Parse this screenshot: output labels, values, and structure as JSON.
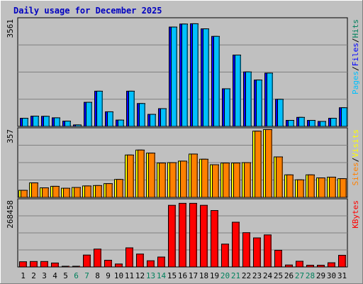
{
  "chart_data": {
    "type": "bar",
    "title": "Daily usage for December 2025",
    "categories": [
      "1",
      "2",
      "3",
      "4",
      "5",
      "6",
      "7",
      "8",
      "9",
      "10",
      "11",
      "12",
      "13",
      "14",
      "15",
      "16",
      "17",
      "18",
      "19",
      "20",
      "21",
      "22",
      "23",
      "24",
      "25",
      "26",
      "27",
      "28",
      "29",
      "30",
      "31"
    ],
    "weekend_days": [
      "6",
      "7",
      "13",
      "14",
      "20",
      "21",
      "27",
      "28"
    ],
    "panels": [
      {
        "id": "pages-files-hits",
        "ymax": 3561,
        "ymax_label": "3561",
        "legend": [
          "Pages",
          "/",
          "Files",
          "/",
          "Hits"
        ],
        "series": [
          {
            "name": "Hits",
            "color": "#00805c",
            "values": [
              0,
              0,
              0,
              0,
              0,
              0,
              0,
              0,
              0,
              0,
              0,
              0,
              0,
              0,
              0,
              0,
              0,
              0,
              0,
              0,
              0,
              0,
              0,
              0,
              0,
              0,
              0,
              0,
              0,
              0,
              0
            ]
          },
          {
            "name": "Files",
            "color": "#0000ff",
            "values": [
              270,
              340,
              335,
              285,
              175,
              50,
              800,
              1170,
              485,
              210,
              1170,
              760,
              400,
              590,
              3300,
              3400,
              3410,
              3240,
              2990,
              1250,
              2370,
              1810,
              1540,
              1770,
              900,
              200,
              300,
              200,
              165,
              270,
              620
            ]
          },
          {
            "name": "Pages",
            "color": "#00c0ff",
            "values": [
              270,
              340,
              335,
              285,
              175,
              50,
              800,
              1170,
              485,
              210,
              1170,
              760,
              400,
              590,
              3300,
              3400,
              3410,
              3240,
              2990,
              1250,
              2370,
              1810,
              1540,
              1770,
              900,
              200,
              300,
              200,
              165,
              270,
              620
            ]
          }
        ]
      },
      {
        "id": "visits-sites",
        "ymax": 357,
        "ymax_label": "357",
        "legend": [
          "Sites",
          "/",
          "Visits"
        ],
        "series": [
          {
            "name": "Visits",
            "color": "#ffff00",
            "values": [
              37,
              76,
              50,
              58,
              48,
              52,
              60,
              62,
              72,
              94,
              222,
              248,
              232,
              180,
              182,
              190,
              227,
              200,
              171,
              180,
              180,
              182,
              347,
              355,
              212,
              118,
              92,
              118,
              102,
              106,
              98
            ]
          },
          {
            "name": "Sites",
            "color": "#ff8000",
            "values": [
              37,
              76,
              50,
              58,
              48,
              52,
              60,
              62,
              72,
              94,
              222,
              248,
              232,
              180,
              182,
              190,
              227,
              200,
              171,
              180,
              180,
              182,
              347,
              355,
              212,
              118,
              92,
              118,
              102,
              106,
              98
            ]
          }
        ]
      },
      {
        "id": "kbytes",
        "ymax": 268458,
        "ymax_label": "268458",
        "legend": [
          "KBytes"
        ],
        "series": [
          {
            "name": "KBytes",
            "color": "#ff0000",
            "values": [
              21000,
              22000,
              22000,
              16000,
              3000,
              3000,
              48000,
              72000,
              27000,
              12000,
              77000,
              52000,
              25000,
              40000,
              248000,
              256000,
              256000,
              248000,
              227000,
              92000,
              180000,
              138000,
              117000,
              129000,
              67000,
              8000,
              23000,
              7000,
              7000,
              17000,
              47000
            ]
          }
        ]
      }
    ]
  }
}
